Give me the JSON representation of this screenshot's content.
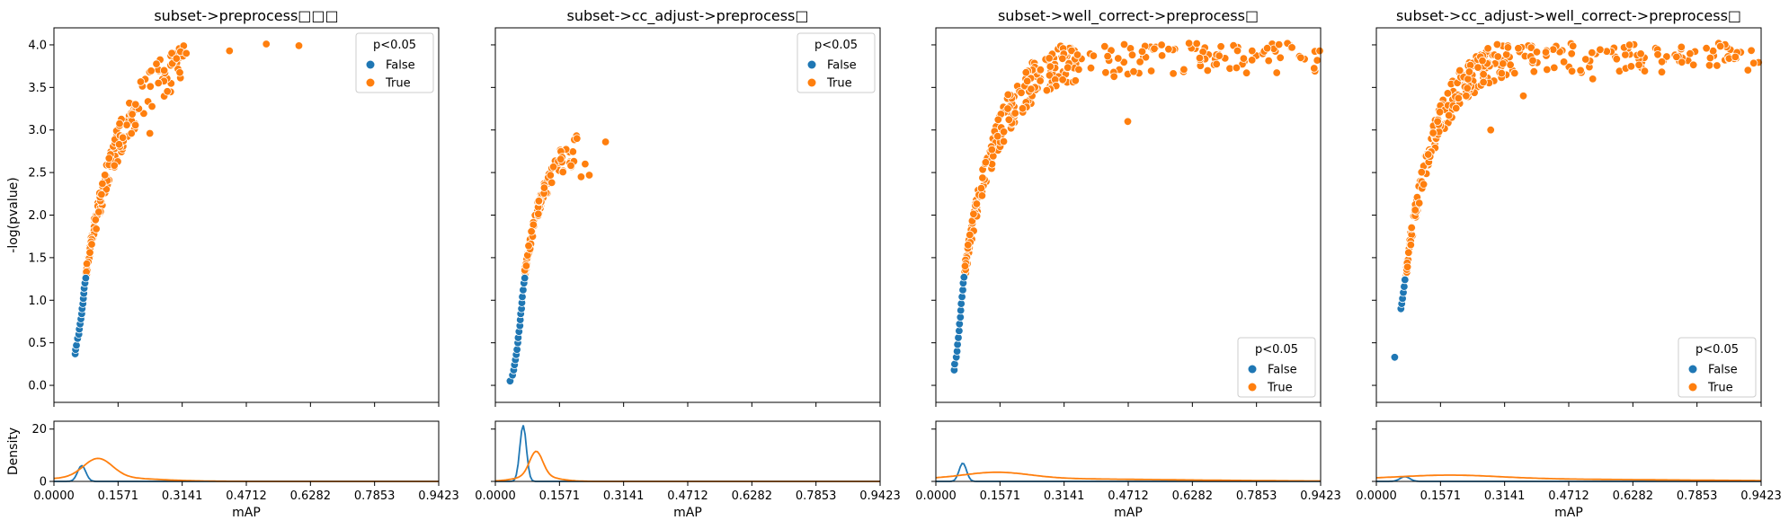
{
  "colors": {
    "false": "#1f77b4",
    "true": "#ff7f0e"
  },
  "chart_data": [
    {
      "type": "scatter",
      "title": "subset->preprocess□□□",
      "xlabel": "mAP",
      "ylabel": "-log(pvalue)",
      "density_ylabel": "Density",
      "xlim": [
        0,
        0.9423
      ],
      "ylim": [
        -0.2,
        4.2
      ],
      "density_ylim": [
        0,
        23
      ],
      "x_ticks": [
        "0.0000",
        "0.1571",
        "0.3141",
        "0.4712",
        "0.6282",
        "0.7853",
        "0.9423"
      ],
      "y_ticks": [
        "0.0",
        "0.5",
        "1.0",
        "1.5",
        "2.0",
        "2.5",
        "3.0",
        "3.5",
        "4.0"
      ],
      "density_ticks": [
        "0",
        "20"
      ],
      "legend": {
        "title": "p<0.05",
        "entries": [
          "False",
          "True"
        ],
        "position": "top-right"
      },
      "series": [
        {
          "name": "False",
          "color_key": "false",
          "points": [
            [
              0.052,
              0.37
            ],
            [
              0.053,
              0.42
            ],
            [
              0.055,
              0.47
            ],
            [
              0.058,
              0.55
            ],
            [
              0.061,
              0.6
            ],
            [
              0.062,
              0.66
            ],
            [
              0.064,
              0.72
            ],
            [
              0.066,
              0.78
            ],
            [
              0.068,
              0.84
            ],
            [
              0.069,
              0.9
            ],
            [
              0.071,
              0.96
            ],
            [
              0.072,
              1.02
            ],
            [
              0.073,
              1.08
            ],
            [
              0.074,
              1.14
            ],
            [
              0.076,
              1.2
            ],
            [
              0.078,
              1.26
            ]
          ]
        },
        {
          "name": "True",
          "color_key": "true",
          "gen": {
            "n": 170,
            "x0": 0.078,
            "x1": 0.2,
            "x2": 0.32,
            "ymin": 1.3,
            "ymax": 3.95,
            "k": 11,
            "jy": 0.25,
            "seed": 11
          },
          "points": [
            [
              0.2,
              3.3
            ],
            [
              0.235,
              2.96
            ],
            [
              0.27,
              3.7
            ],
            [
              0.29,
              3.78
            ],
            [
              0.3,
              3.84
            ],
            [
              0.31,
              3.92
            ],
            [
              0.324,
              3.9
            ],
            [
              0.43,
              3.93
            ],
            [
              0.52,
              4.01
            ],
            [
              0.6,
              3.99
            ]
          ]
        }
      ],
      "density": [
        {
          "name": "False",
          "color_key": "false",
          "peak_x": 0.068,
          "peak_y": 6,
          "sd": 0.01,
          "tail_y": 0,
          "tail_sd": 0
        },
        {
          "name": "True",
          "color_key": "true",
          "peak_x": 0.108,
          "peak_y": 7.2,
          "sd": 0.035,
          "tail_y": 1.6,
          "tail_sd": 0.12
        }
      ]
    },
    {
      "type": "scatter",
      "title": "subset->cc_adjust->preprocess□",
      "xlabel": "mAP",
      "ylabel": "",
      "density_ylabel": "",
      "xlim": [
        0,
        0.9423
      ],
      "ylim": [
        -0.2,
        4.2
      ],
      "density_ylim": [
        0,
        23
      ],
      "x_ticks": [
        "0.0000",
        "0.1571",
        "0.3141",
        "0.4712",
        "0.6282",
        "0.7853",
        "0.9423"
      ],
      "y_ticks": [],
      "density_ticks": [],
      "legend": {
        "title": "p<0.05",
        "entries": [
          "False",
          "True"
        ],
        "position": "top-right"
      },
      "series": [
        {
          "name": "False",
          "color_key": "false",
          "points": [
            [
              0.036,
              0.05
            ],
            [
              0.042,
              0.12
            ],
            [
              0.045,
              0.18
            ],
            [
              0.047,
              0.24
            ],
            [
              0.049,
              0.3
            ],
            [
              0.051,
              0.36
            ],
            [
              0.053,
              0.42
            ],
            [
              0.055,
              0.5
            ],
            [
              0.056,
              0.56
            ],
            [
              0.058,
              0.63
            ],
            [
              0.06,
              0.7
            ],
            [
              0.061,
              0.77
            ],
            [
              0.062,
              0.84
            ],
            [
              0.064,
              0.9
            ],
            [
              0.065,
              0.97
            ],
            [
              0.066,
              1.04
            ],
            [
              0.068,
              1.12
            ],
            [
              0.07,
              1.2
            ],
            [
              0.072,
              1.26
            ]
          ]
        },
        {
          "name": "True",
          "color_key": "true",
          "gen": {
            "n": 110,
            "x0": 0.072,
            "x1": 0.135,
            "x2": 0.2,
            "ymin": 1.3,
            "ymax": 2.9,
            "k": 20,
            "jy": 0.18,
            "seed": 23
          },
          "points": [
            [
              0.21,
              2.45
            ],
            [
              0.22,
              2.6
            ],
            [
              0.23,
              2.47
            ],
            [
              0.2,
              2.9
            ],
            [
              0.27,
              2.86
            ]
          ]
        }
      ],
      "density": [
        {
          "name": "False",
          "color_key": "false",
          "peak_x": 0.068,
          "peak_y": 21.5,
          "sd": 0.008,
          "tail_y": 0,
          "tail_sd": 0
        },
        {
          "name": "True",
          "color_key": "true",
          "peak_x": 0.1,
          "peak_y": 9.3,
          "sd": 0.016,
          "tail_y": 2.2,
          "tail_sd": 0.045
        }
      ]
    },
    {
      "type": "scatter",
      "title": "subset->well_correct->preprocess□",
      "xlabel": "mAP",
      "ylabel": "",
      "density_ylabel": "",
      "xlim": [
        0,
        0.9423
      ],
      "ylim": [
        -0.2,
        4.2
      ],
      "density_ylim": [
        0,
        23
      ],
      "x_ticks": [
        "0.0000",
        "0.1571",
        "0.3141",
        "0.4712",
        "0.6282",
        "0.7853",
        "0.9423"
      ],
      "y_ticks": [],
      "density_ticks": [],
      "legend": {
        "title": "p<0.05",
        "entries": [
          "False",
          "True"
        ],
        "position": "bottom-right"
      },
      "series": [
        {
          "name": "False",
          "color_key": "false",
          "points": [
            [
              0.045,
              0.18
            ],
            [
              0.046,
              0.25
            ],
            [
              0.05,
              0.33
            ],
            [
              0.052,
              0.4
            ],
            [
              0.053,
              0.48
            ],
            [
              0.055,
              0.56
            ],
            [
              0.057,
              0.64
            ],
            [
              0.058,
              0.72
            ],
            [
              0.06,
              0.8
            ],
            [
              0.061,
              0.88
            ],
            [
              0.062,
              0.96
            ],
            [
              0.064,
              1.04
            ],
            [
              0.066,
              1.12
            ],
            [
              0.067,
              1.2
            ],
            [
              0.069,
              1.27
            ]
          ]
        },
        {
          "name": "True",
          "color_key": "true",
          "gen": {
            "n": 300,
            "x0": 0.07,
            "x1": 0.35,
            "x2": 0.94,
            "ymin": 1.3,
            "ymax": 3.9,
            "k": 12,
            "jy": 0.25,
            "seed": 37
          },
          "points": [
            [
              0.47,
              3.1
            ],
            [
              0.5,
              3.8
            ],
            [
              0.57,
              3.95
            ],
            [
              0.62,
              4.02
            ],
            [
              0.94,
              3.93
            ]
          ]
        }
      ],
      "density": [
        {
          "name": "False",
          "color_key": "false",
          "peak_x": 0.066,
          "peak_y": 7,
          "sd": 0.009,
          "tail_y": 0,
          "tail_sd": 0
        },
        {
          "name": "True",
          "color_key": "true",
          "peak_x": 0.15,
          "peak_y": 2.4,
          "sd": 0.08,
          "tail_y": 1.1,
          "tail_sd": 0.4
        }
      ]
    },
    {
      "type": "scatter",
      "title": "subset->cc_adjust->well_correct->preprocess□",
      "xlabel": "mAP",
      "ylabel": "",
      "density_ylabel": "",
      "xlim": [
        0,
        0.9423
      ],
      "ylim": [
        -0.2,
        4.2
      ],
      "density_ylim": [
        0,
        23
      ],
      "x_ticks": [
        "0.0000",
        "0.1571",
        "0.3141",
        "0.4712",
        "0.6282",
        "0.7853",
        "0.9423"
      ],
      "y_ticks": [],
      "density_ticks": [],
      "legend": {
        "title": "p<0.05",
        "entries": [
          "False",
          "True"
        ],
        "position": "bottom-right"
      },
      "series": [
        {
          "name": "False",
          "color_key": "false",
          "points": [
            [
              0.045,
              0.33
            ],
            [
              0.06,
              0.9
            ],
            [
              0.062,
              0.96
            ],
            [
              0.064,
              1.02
            ],
            [
              0.066,
              1.09
            ],
            [
              0.068,
              1.16
            ],
            [
              0.07,
              1.24
            ]
          ]
        },
        {
          "name": "True",
          "color_key": "true",
          "gen": {
            "n": 330,
            "x0": 0.072,
            "x1": 0.32,
            "x2": 0.94,
            "ymin": 1.3,
            "ymax": 3.9,
            "k": 14,
            "jy": 0.22,
            "seed": 51
          },
          "points": [
            [
              0.15,
              3.1
            ],
            [
              0.22,
              3.4
            ],
            [
              0.28,
              3.0
            ],
            [
              0.36,
              3.4
            ],
            [
              0.5,
              3.7
            ],
            [
              0.53,
              3.6
            ],
            [
              0.62,
              4.0
            ]
          ]
        }
      ],
      "density": [
        {
          "name": "False",
          "color_key": "false",
          "peak_x": 0.07,
          "peak_y": 1.8,
          "sd": 0.012,
          "tail_y": 0,
          "tail_sd": 0
        },
        {
          "name": "True",
          "color_key": "true",
          "peak_x": 0.18,
          "peak_y": 1.4,
          "sd": 0.12,
          "tail_y": 1.0,
          "tail_sd": 0.5
        }
      ]
    }
  ]
}
